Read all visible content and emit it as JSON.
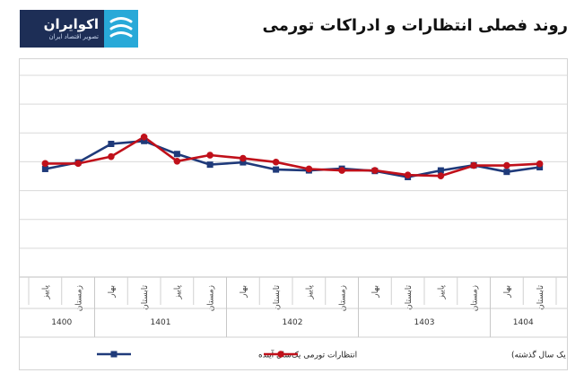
{
  "logo": {
    "name": "اکوایران",
    "tagline": "تصویر اقتصاد ایران"
  },
  "title": "روند فصلی انتظارات و ادراکات تورمی",
  "chart_data": {
    "type": "line",
    "categories": [
      "پاییز",
      "زمستان",
      "بهار",
      "تابستان",
      "پاییز",
      "زمستان",
      "بهار",
      "تابستان",
      "پاییز",
      "زمستان",
      "بهار",
      "تابستان",
      "پاییز",
      "زمستان",
      "بهار",
      "تابستان"
    ],
    "year_groups": [
      {
        "label": "1400",
        "count": 2
      },
      {
        "label": "1401",
        "count": 4
      },
      {
        "label": "1402",
        "count": 4
      },
      {
        "label": "1403",
        "count": 4
      },
      {
        "label": "1404",
        "count": 2
      }
    ],
    "ylim": [
      0,
      7
    ],
    "grid": true,
    "legend_position": "bottom",
    "series": [
      {
        "name": "انتظارات تورمی یک‌سال آینده",
        "color": "#1f3a7a",
        "marker": "square",
        "values": [
          3.75,
          3.98,
          4.62,
          4.72,
          4.27,
          3.9,
          3.98,
          3.73,
          3.7,
          3.76,
          3.68,
          3.47,
          3.7,
          3.88,
          3.65,
          3.81
        ]
      },
      {
        "name": "ادراکات تورمی(تورم احساس شده در یک سال گذشته)",
        "color": "#c0101a",
        "marker": "circle",
        "values": [
          3.94,
          3.94,
          4.18,
          4.86,
          4.02,
          4.23,
          4.12,
          3.99,
          3.75,
          3.7,
          3.7,
          3.54,
          3.51,
          3.87,
          3.87,
          3.93
        ]
      }
    ]
  }
}
